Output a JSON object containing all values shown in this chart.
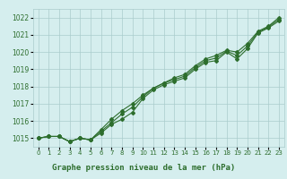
{
  "title": "Graphe pression niveau de la mer (hPa)",
  "xlabel_labels": [
    "0",
    "1",
    "2",
    "3",
    "4",
    "5",
    "6",
    "7",
    "8",
    "9",
    "10",
    "11",
    "12",
    "13",
    "14",
    "15",
    "16",
    "17",
    "18",
    "19",
    "20",
    "21",
    "22",
    "23"
  ],
  "x": [
    0,
    1,
    2,
    3,
    4,
    5,
    6,
    7,
    8,
    9,
    10,
    11,
    12,
    13,
    14,
    15,
    16,
    17,
    18,
    19,
    20,
    21,
    22,
    23
  ],
  "series1": [
    1015.0,
    1015.1,
    1015.1,
    1014.8,
    1015.0,
    1014.9,
    1015.3,
    1015.8,
    1016.1,
    1016.5,
    1017.3,
    1017.8,
    1018.1,
    1018.3,
    1018.5,
    1019.0,
    1019.4,
    1019.5,
    1020.0,
    1019.6,
    1020.2,
    1021.1,
    1021.4,
    1021.8
  ],
  "series2": [
    1015.0,
    1015.1,
    1015.1,
    1014.8,
    1015.0,
    1014.9,
    1015.5,
    1016.1,
    1016.6,
    1017.0,
    1017.5,
    1017.9,
    1018.2,
    1018.5,
    1018.7,
    1019.2,
    1019.6,
    1019.8,
    1020.1,
    1020.0,
    1020.5,
    1021.2,
    1021.5,
    1022.0
  ],
  "series3": [
    1015.0,
    1015.1,
    1015.1,
    1014.8,
    1015.0,
    1014.9,
    1015.4,
    1015.9,
    1016.4,
    1016.8,
    1017.4,
    1017.9,
    1018.2,
    1018.4,
    1018.6,
    1019.1,
    1019.5,
    1019.65,
    1020.05,
    1019.8,
    1020.35,
    1021.15,
    1021.45,
    1021.9
  ],
  "ylim_min": 1014.5,
  "ylim_max": 1022.5,
  "yticks": [
    1015,
    1016,
    1017,
    1018,
    1019,
    1020,
    1021,
    1022
  ],
  "line_color": "#2d6e2d",
  "bg_color": "#d5eeee",
  "grid_color": "#aacccc",
  "title_color": "#2d6e2d",
  "marker": "D",
  "markersize": 2.0,
  "linewidth": 0.8
}
